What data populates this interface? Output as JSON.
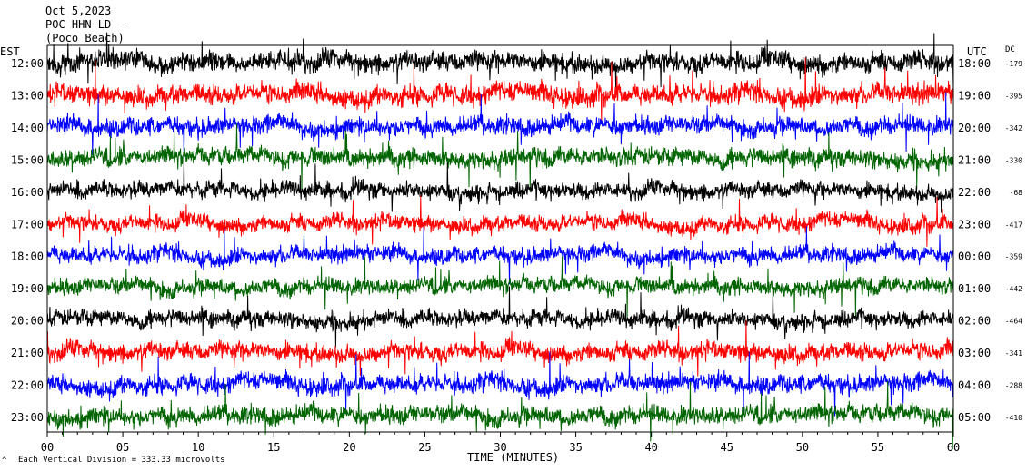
{
  "header": {
    "date": "Oct 5,2023",
    "station": "POC HHN LD --",
    "subtitle": "(Poco Beach)"
  },
  "left_zone": "EST",
  "right_zone": "UTC",
  "dc_header": "DC",
  "xlabel": "TIME (MINUTES)",
  "footer": "Each Vertical Division = 333.33 microvolts",
  "colors": {
    "black": "#000000",
    "red": "#ff0000",
    "blue": "#0000ff",
    "green": "#006400"
  },
  "chart_data": {
    "type": "line",
    "title": "",
    "xlabel": "TIME (MINUTES)",
    "xlim": [
      0,
      60
    ],
    "x_ticks": [
      "00",
      "05",
      "10",
      "15",
      "20",
      "25",
      "30",
      "35",
      "40",
      "45",
      "50",
      "55",
      "60"
    ],
    "traces": [
      {
        "est": "12:00",
        "utc": "18:00",
        "dc": "-179",
        "color": "black",
        "amplitude": 1.0
      },
      {
        "est": "13:00",
        "utc": "19:00",
        "dc": "-395",
        "color": "red",
        "amplitude": 1.0
      },
      {
        "est": "14:00",
        "utc": "20:00",
        "dc": "-342",
        "color": "blue",
        "amplitude": 0.9
      },
      {
        "est": "15:00",
        "utc": "21:00",
        "dc": "-330",
        "color": "green",
        "amplitude": 0.9
      },
      {
        "est": "16:00",
        "utc": "22:00",
        "dc": "-68",
        "color": "black",
        "amplitude": 0.8
      },
      {
        "est": "17:00",
        "utc": "23:00",
        "dc": "-417",
        "color": "red",
        "amplitude": 0.8
      },
      {
        "est": "18:00",
        "utc": "00:00",
        "dc": "-359",
        "color": "blue",
        "amplitude": 0.8
      },
      {
        "est": "19:00",
        "utc": "01:00",
        "dc": "-442",
        "color": "green",
        "amplitude": 0.8
      },
      {
        "est": "20:00",
        "utc": "02:00",
        "dc": "-464",
        "color": "black",
        "amplitude": 0.8
      },
      {
        "est": "21:00",
        "utc": "03:00",
        "dc": "-341",
        "color": "red",
        "amplitude": 0.9
      },
      {
        "est": "22:00",
        "utc": "04:00",
        "dc": "-288",
        "color": "blue",
        "amplitude": 0.9
      },
      {
        "est": "23:00",
        "utc": "05:00",
        "dc": "-410",
        "color": "green",
        "amplitude": 0.9
      }
    ]
  }
}
